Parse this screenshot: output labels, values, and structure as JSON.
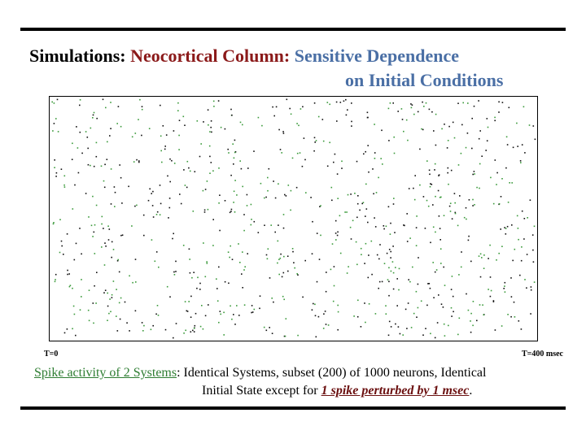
{
  "title": {
    "part1": "Simulations:",
    "part2": "Neocortical Column:",
    "part3": "Sensitive Dependence",
    "part4": "on Initial Conditions"
  },
  "raster": {
    "start_label": "T=0",
    "end_label": "T=400 msec"
  },
  "caption": {
    "green_part": "Spike  activity of 2 Systems",
    "black_part1": ": Identical Systems, subset (200) of 1000 neurons, Identical",
    "black_part2": "Initial State except for",
    "red_part": "1 spike perturbed by 1 msec",
    "end": "."
  },
  "colors": {
    "title_black": "#000000",
    "title_red": "#8b1a1a",
    "title_blue": "#4a6fa5",
    "green": "#2e7d32",
    "dark_red": "#6b1010",
    "raster_border": "#000000",
    "spike_black": "#111111",
    "spike_green": "#3a9a3a"
  }
}
